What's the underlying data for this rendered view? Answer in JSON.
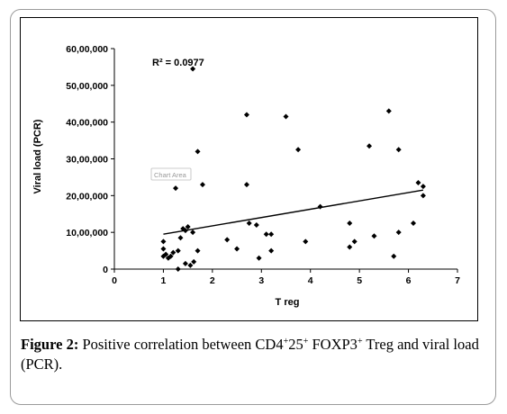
{
  "chart_data": {
    "type": "scatter",
    "xlabel": "T reg",
    "ylabel": "Viral load (PCR)",
    "xlim": [
      0,
      7
    ],
    "ylim": [
      0,
      6000000
    ],
    "x_ticks": [
      0,
      1,
      2,
      3,
      4,
      5,
      6,
      7
    ],
    "y_ticks": [
      0,
      1000000,
      2000000,
      3000000,
      4000000,
      5000000,
      6000000
    ],
    "x_tick_labels": [
      "0",
      "1",
      "2",
      "3",
      "4",
      "5",
      "6",
      "7"
    ],
    "y_tick_labels": [
      "0",
      "10,00,000",
      "20,00,000",
      "30,00,000",
      "40,00,000",
      "50,00,000",
      "60,00,000"
    ],
    "r_squared_label": "R² = 0.0977",
    "chart_area_tooltip": "Chart Area",
    "marker": "diamond",
    "marker_color": "#000000",
    "trendline": {
      "type": "linear",
      "x": [
        1,
        6.3
      ],
      "y": [
        950000,
        2150000
      ],
      "color": "#000000"
    },
    "grid": false,
    "legend": "none",
    "points": [
      {
        "x": 1.0,
        "y": 750000
      },
      {
        "x": 1.0,
        "y": 550000
      },
      {
        "x": 1.0,
        "y": 350000
      },
      {
        "x": 1.05,
        "y": 400000
      },
      {
        "x": 1.1,
        "y": 300000
      },
      {
        "x": 1.15,
        "y": 350000
      },
      {
        "x": 1.2,
        "y": 450000
      },
      {
        "x": 1.3,
        "y": 500000
      },
      {
        "x": 1.35,
        "y": 850000
      },
      {
        "x": 1.4,
        "y": 1100000
      },
      {
        "x": 1.45,
        "y": 1050000
      },
      {
        "x": 1.5,
        "y": 1150000
      },
      {
        "x": 1.6,
        "y": 1000000
      },
      {
        "x": 1.25,
        "y": 2200000
      },
      {
        "x": 1.3,
        "y": 0
      },
      {
        "x": 1.45,
        "y": 150000
      },
      {
        "x": 1.55,
        "y": 100000
      },
      {
        "x": 1.62,
        "y": 200000
      },
      {
        "x": 1.7,
        "y": 500000
      },
      {
        "x": 1.6,
        "y": 5450000
      },
      {
        "x": 1.7,
        "y": 3200000
      },
      {
        "x": 1.8,
        "y": 2300000
      },
      {
        "x": 2.3,
        "y": 800000
      },
      {
        "x": 2.5,
        "y": 550000
      },
      {
        "x": 2.7,
        "y": 4200000
      },
      {
        "x": 2.7,
        "y": 2300000
      },
      {
        "x": 2.75,
        "y": 1250000
      },
      {
        "x": 2.9,
        "y": 1200000
      },
      {
        "x": 2.95,
        "y": 300000
      },
      {
        "x": 3.1,
        "y": 950000
      },
      {
        "x": 3.2,
        "y": 950000
      },
      {
        "x": 3.2,
        "y": 500000
      },
      {
        "x": 3.5,
        "y": 4150000
      },
      {
        "x": 3.75,
        "y": 3250000
      },
      {
        "x": 3.9,
        "y": 750000
      },
      {
        "x": 4.2,
        "y": 1700000
      },
      {
        "x": 4.8,
        "y": 1250000
      },
      {
        "x": 4.8,
        "y": 600000
      },
      {
        "x": 4.9,
        "y": 750000
      },
      {
        "x": 5.2,
        "y": 3350000
      },
      {
        "x": 5.3,
        "y": 900000
      },
      {
        "x": 5.6,
        "y": 4300000
      },
      {
        "x": 5.7,
        "y": 350000
      },
      {
        "x": 5.8,
        "y": 3250000
      },
      {
        "x": 5.8,
        "y": 1000000
      },
      {
        "x": 6.1,
        "y": 1250000
      },
      {
        "x": 6.2,
        "y": 2350000
      },
      {
        "x": 6.3,
        "y": 2250000
      },
      {
        "x": 6.3,
        "y": 2000000
      }
    ]
  },
  "caption": {
    "figure_label": "Figure 2:",
    "text_1": " Positive correlation between CD4",
    "sup_1": "+",
    "text_2": "25",
    "sup_2": "+",
    "text_3": " FOXP3",
    "sup_3": "+",
    "text_4": " Treg and viral load (PCR)."
  }
}
